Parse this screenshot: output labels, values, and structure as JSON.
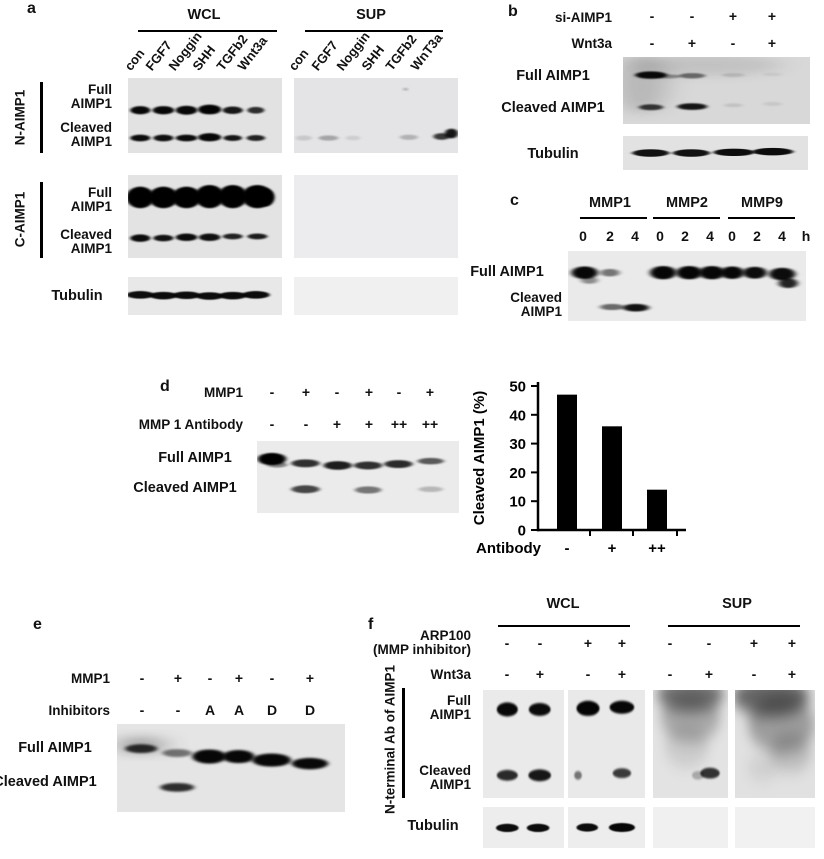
{
  "panel_a": {
    "label": "a",
    "groups": [
      "WCL",
      "SUP"
    ],
    "wcl_lanes": [
      "con",
      "FGF7",
      "Noggin",
      "SHH",
      "TGFb2",
      "Wnt3a"
    ],
    "sup_lanes": [
      "con",
      "FGF7",
      "Noggin",
      "SHH",
      "TGFb2",
      "WnT3a"
    ],
    "antibody_n": "N-AIMP1",
    "antibody_c": "C-AIMP1",
    "full": "Full\nAIMP1",
    "cleaved": "Cleaved\nAIMP1",
    "tubulin": "Tubulin"
  },
  "panel_b": {
    "label": "b",
    "row1_label": "si-AIMP1",
    "row1": [
      "-",
      "-",
      "+",
      "+"
    ],
    "row2_label": "Wnt3a",
    "row2": [
      "-",
      "+",
      "-",
      "+"
    ],
    "full": "Full AIMP1",
    "cleaved": "Cleaved AIMP1",
    "tubulin": "Tubulin"
  },
  "panel_c": {
    "label": "c",
    "groups": [
      "MMP1",
      "MMP2",
      "MMP9"
    ],
    "times": [
      "0",
      "2",
      "4",
      "0",
      "2",
      "4",
      "0",
      "2",
      "4"
    ],
    "time_unit": "h",
    "full": "Full AIMP1",
    "cleaved": "Cleaved\nAIMP1"
  },
  "panel_d": {
    "label": "d",
    "row1_label": "MMP1",
    "row1": [
      "-",
      "+",
      "-",
      "+",
      "-",
      "+"
    ],
    "row2_label": "MMP 1 Antibody",
    "row2": [
      "-",
      "-",
      "+",
      "+",
      "++",
      "++"
    ],
    "full": "Full AIMP1",
    "cleaved": "Cleaved AIMP1"
  },
  "chart_data": {
    "type": "bar",
    "categories": [
      "-",
      "+",
      "++"
    ],
    "values": [
      47,
      36,
      14
    ],
    "title": "",
    "xlabel": "Antibody",
    "ylabel": "Cleaved AIMP1 (%)",
    "ylim": [
      0,
      50
    ],
    "yticks": [
      0,
      10,
      20,
      30,
      40,
      50
    ],
    "grid": false,
    "legend": false,
    "bar_color": "#000000"
  },
  "panel_e": {
    "label": "e",
    "row1_label": "MMP1",
    "row1": [
      "-",
      "+",
      "-",
      "+",
      "-",
      "+"
    ],
    "row2_label": "Inhibitors",
    "row2": [
      "-",
      "-",
      "A",
      "A",
      "D",
      "D"
    ],
    "full": "Full AIMP1",
    "cleaved": "Cleaved AIMP1"
  },
  "panel_f": {
    "label": "f",
    "groups": [
      "WCL",
      "SUP"
    ],
    "row1_label": "ARP100\n(MMP inhibitor)",
    "row1": [
      "-",
      "-",
      "+",
      "+",
      "-",
      "-",
      "+",
      "+"
    ],
    "row2_label": "Wnt3a",
    "row2": [
      "-",
      "+",
      "-",
      "+",
      "-",
      "+",
      "-",
      "+"
    ],
    "side_label": "N-terminal Ab of AIMP1",
    "full": "Full\nAIMP1",
    "cleaved": "Cleaved\nAIMP1",
    "tubulin": "Tubulin"
  },
  "blots": {
    "a_n_wcl": {
      "bg": "#e2e2e2",
      "bands": [
        [
          8,
          43,
          6.5,
          5.5,
          0.97
        ],
        [
          23,
          43,
          7,
          5.5,
          0.97
        ],
        [
          38,
          43,
          7,
          6,
          0.97
        ],
        [
          53,
          42,
          7.5,
          6.5,
          0.98
        ],
        [
          68,
          43,
          6.5,
          5,
          0.9
        ],
        [
          83,
          43,
          5.5,
          4.5,
          0.8
        ],
        [
          8,
          80,
          6.5,
          4.5,
          0.95
        ],
        [
          23,
          80,
          6.5,
          4.5,
          0.93
        ],
        [
          38,
          80,
          7,
          4.5,
          0.95
        ],
        [
          53,
          79,
          7.5,
          5.5,
          0.97
        ],
        [
          68,
          80,
          6,
          4,
          0.9
        ],
        [
          83,
          80,
          6,
          4,
          0.85
        ]
      ]
    },
    "a_n_sup": {
      "bg": "#e4e4e6",
      "bands": [
        [
          68,
          15,
          1.2,
          1.8,
          0.3
        ],
        [
          6,
          80,
          5,
          3.5,
          0.12
        ],
        [
          21,
          80,
          6,
          3.5,
          0.28
        ],
        [
          36,
          80,
          4.5,
          3,
          0.1
        ],
        [
          70,
          79,
          5.5,
          3.5,
          0.22
        ],
        [
          90,
          78,
          5,
          4.5,
          0.75
        ],
        [
          96,
          74,
          4,
          6.5,
          0.9
        ]
      ]
    },
    "a_c_wcl": {
      "bg": "#e3e3e3",
      "bands": [
        [
          8,
          27,
          9,
          13,
          1
        ],
        [
          23,
          27,
          9.5,
          13,
          1
        ],
        [
          38,
          27,
          9.5,
          13,
          1
        ],
        [
          53,
          26,
          9.5,
          14,
          1
        ],
        [
          68,
          26,
          9.5,
          14,
          1
        ],
        [
          84,
          26,
          10,
          14,
          1
        ],
        [
          89,
          27,
          6,
          11,
          1
        ],
        [
          8,
          76,
          6.5,
          4.5,
          0.95
        ],
        [
          23,
          76,
          6.5,
          4,
          0.92
        ],
        [
          38,
          75,
          7,
          4.5,
          0.95
        ],
        [
          53,
          75,
          7,
          4.5,
          0.93
        ],
        [
          68,
          74,
          6.5,
          3.5,
          0.85
        ],
        [
          84,
          74,
          6.5,
          3.5,
          0.88
        ]
      ]
    },
    "a_c_sup": {
      "bg": "#ececee",
      "bands": []
    },
    "a_t_wcl": {
      "bg": "#e8e8e8",
      "bands": [
        [
          8,
          47,
          9,
          10,
          0.95
        ],
        [
          23,
          49,
          9,
          10,
          0.95
        ],
        [
          38,
          48,
          9,
          10,
          0.95
        ],
        [
          53,
          50,
          9,
          10,
          0.95
        ],
        [
          68,
          49,
          9,
          10,
          0.95
        ],
        [
          83,
          47,
          9,
          10,
          0.95
        ]
      ]
    },
    "a_t_sup": {
      "bg": "#f0f0f0",
      "bands": []
    },
    "b_main": {
      "bg": "#d8d8d8",
      "bands": [
        [
          10,
          40,
          14,
          45,
          0.15,
          "s"
        ],
        [
          45,
          12,
          40,
          16,
          0.1,
          "s"
        ],
        [
          15,
          27,
          8.5,
          5.5,
          0.95
        ],
        [
          24,
          29,
          7,
          3,
          0.35
        ],
        [
          37,
          28,
          7,
          4,
          0.5
        ],
        [
          59,
          27,
          6,
          3,
          0.12
        ],
        [
          80,
          26,
          5,
          2.5,
          0.06
        ],
        [
          15,
          75,
          6.5,
          4.5,
          0.75
        ],
        [
          37,
          74,
          8,
          5,
          0.9
        ],
        [
          59,
          72,
          5,
          3,
          0.1
        ],
        [
          80,
          70,
          5,
          3,
          0.08
        ]
      ]
    },
    "b_tub": {
      "bg": "#e2e2e2",
      "bands": [
        [
          15,
          50,
          10,
          11,
          0.92
        ],
        [
          37,
          50,
          10,
          11,
          0.92
        ],
        [
          60,
          48,
          11,
          11,
          0.95
        ],
        [
          81,
          46,
          11,
          11,
          0.95
        ]
      ]
    },
    "c": {
      "bg": "#eaeaea",
      "bands": [
        [
          7,
          31,
          5.5,
          9,
          0.97
        ],
        [
          9,
          42,
          3.5,
          5,
          0.4
        ],
        [
          17.6,
          31,
          4,
          5.5,
          0.5
        ],
        [
          40,
          31,
          5.5,
          9.5,
          0.98
        ],
        [
          51,
          31,
          5.5,
          9.5,
          0.98
        ],
        [
          60.5,
          31,
          5.5,
          9.5,
          0.97
        ],
        [
          69,
          31,
          5,
          9,
          0.97
        ],
        [
          78.5,
          31,
          5,
          8.5,
          0.95
        ],
        [
          90,
          33,
          5.5,
          9,
          0.95
        ],
        [
          92.5,
          46,
          4,
          7,
          0.85
        ],
        [
          18.5,
          80,
          5,
          4.5,
          0.55
        ],
        [
          28.5,
          81,
          5.5,
          5.5,
          0.92
        ]
      ]
    },
    "d": {
      "bg": "#ebebeb",
      "bands": [
        [
          7.4,
          25,
          7,
          8.5,
          1
        ],
        [
          10,
          33,
          5,
          4,
          0.45
        ],
        [
          24,
          31,
          7,
          5.5,
          0.8
        ],
        [
          40,
          34,
          7,
          6,
          0.88
        ],
        [
          55,
          34,
          7,
          5.5,
          0.8
        ],
        [
          70,
          32,
          7,
          5.5,
          0.82
        ],
        [
          86,
          28,
          6.5,
          4.5,
          0.62
        ],
        [
          24,
          67,
          7,
          5.5,
          0.7
        ],
        [
          55,
          68,
          6.5,
          5,
          0.5
        ],
        [
          86,
          67,
          6,
          4,
          0.22
        ]
      ]
    },
    "e": {
      "bg": "#e5e5e5",
      "bands": [
        [
          10.6,
          24,
          8,
          7,
          0.55,
          "s"
        ],
        [
          10.6,
          28,
          7,
          5,
          0.8
        ],
        [
          26.4,
          33,
          6.5,
          4.5,
          0.5
        ],
        [
          40.5,
          37,
          7.5,
          8,
          0.97
        ],
        [
          53.3,
          37,
          7,
          7.5,
          0.97
        ],
        [
          67.8,
          41,
          8.5,
          7.5,
          0.97
        ],
        [
          84.6,
          45,
          8,
          6.5,
          0.96
        ],
        [
          26.4,
          72,
          7.5,
          5,
          0.8
        ]
      ]
    },
    "f_s1": {
      "bg": "#eaeaea",
      "bands": [
        [
          30,
          18,
          13,
          6.5,
          0.97
        ],
        [
          70,
          18,
          13.5,
          6,
          0.95
        ],
        [
          30,
          79,
          13,
          5,
          0.82
        ],
        [
          70,
          79,
          14,
          5.5,
          0.9
        ]
      ]
    },
    "f_s2": {
      "bg": "#e9e9e9",
      "bands": [
        [
          26,
          17,
          15,
          7,
          0.98
        ],
        [
          70,
          16,
          16,
          6,
          0.97
        ],
        [
          13,
          79,
          5,
          4,
          0.5
        ],
        [
          70,
          77,
          12,
          4.5,
          0.75
        ]
      ]
    },
    "f_s3": {
      "bg": "#e3e3e3",
      "bands": [
        [
          50,
          4,
          45,
          16,
          0.5,
          "s"
        ],
        [
          50,
          26,
          40,
          22,
          0.25,
          "s"
        ],
        [
          45,
          52,
          30,
          20,
          0.1,
          "s"
        ],
        [
          76,
          77,
          13,
          5,
          0.78
        ],
        [
          60,
          79,
          8,
          4,
          0.25
        ]
      ]
    },
    "f_s4": {
      "bg": "#e1e1e1",
      "bands": [
        [
          45,
          6,
          48,
          18,
          0.55,
          "s"
        ],
        [
          58,
          32,
          42,
          26,
          0.3,
          "s"
        ],
        [
          70,
          58,
          26,
          18,
          0.16,
          "s"
        ],
        [
          35,
          72,
          20,
          12,
          0.08,
          "s"
        ]
      ]
    },
    "f_t1": {
      "bg": "#ededed",
      "bands": [
        [
          30,
          51,
          14,
          10,
          0.95
        ],
        [
          68,
          51,
          14,
          10,
          0.95
        ]
      ]
    },
    "f_t2": {
      "bg": "#ededed",
      "bands": [
        [
          25,
          50,
          14,
          10,
          0.95
        ],
        [
          70,
          50,
          17,
          11,
          0.97
        ]
      ]
    },
    "f_t3": {
      "bg": "#f0f0f0",
      "bands": []
    },
    "f_t4": {
      "bg": "#f1f1f1",
      "bands": []
    }
  }
}
